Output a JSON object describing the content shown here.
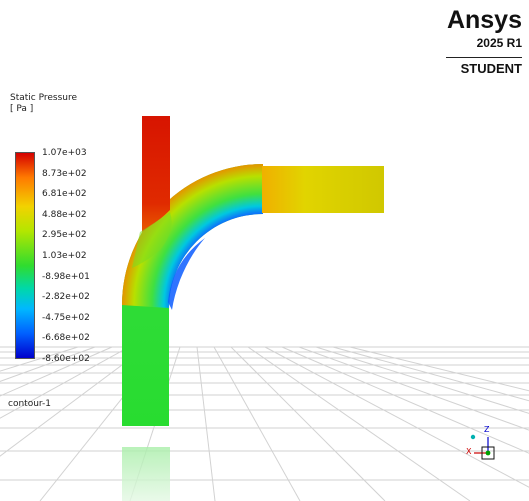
{
  "branding": {
    "name": "Ansys",
    "version": "2025 R1",
    "edition": "STUDENT"
  },
  "legend": {
    "title_line1": "Static Pressure",
    "title_line2": "[ Pa ]",
    "labels": [
      "1.07e+03",
      "8.73e+02",
      "6.81e+02",
      "4.88e+02",
      "2.95e+02",
      "1.03e+02",
      "-8.98e+01",
      "-2.82e+02",
      "-4.75e+02",
      "-6.68e+02",
      "-8.60e+02"
    ]
  },
  "contour_name": "contour-1",
  "triad": {
    "z_label": "Z",
    "x_label": "X"
  },
  "colors": {
    "high": "#d40000",
    "mid": "#2fdc2f",
    "low": "#0000cc",
    "grid": "#d0d0d0",
    "outlet": "#d6d000"
  }
}
